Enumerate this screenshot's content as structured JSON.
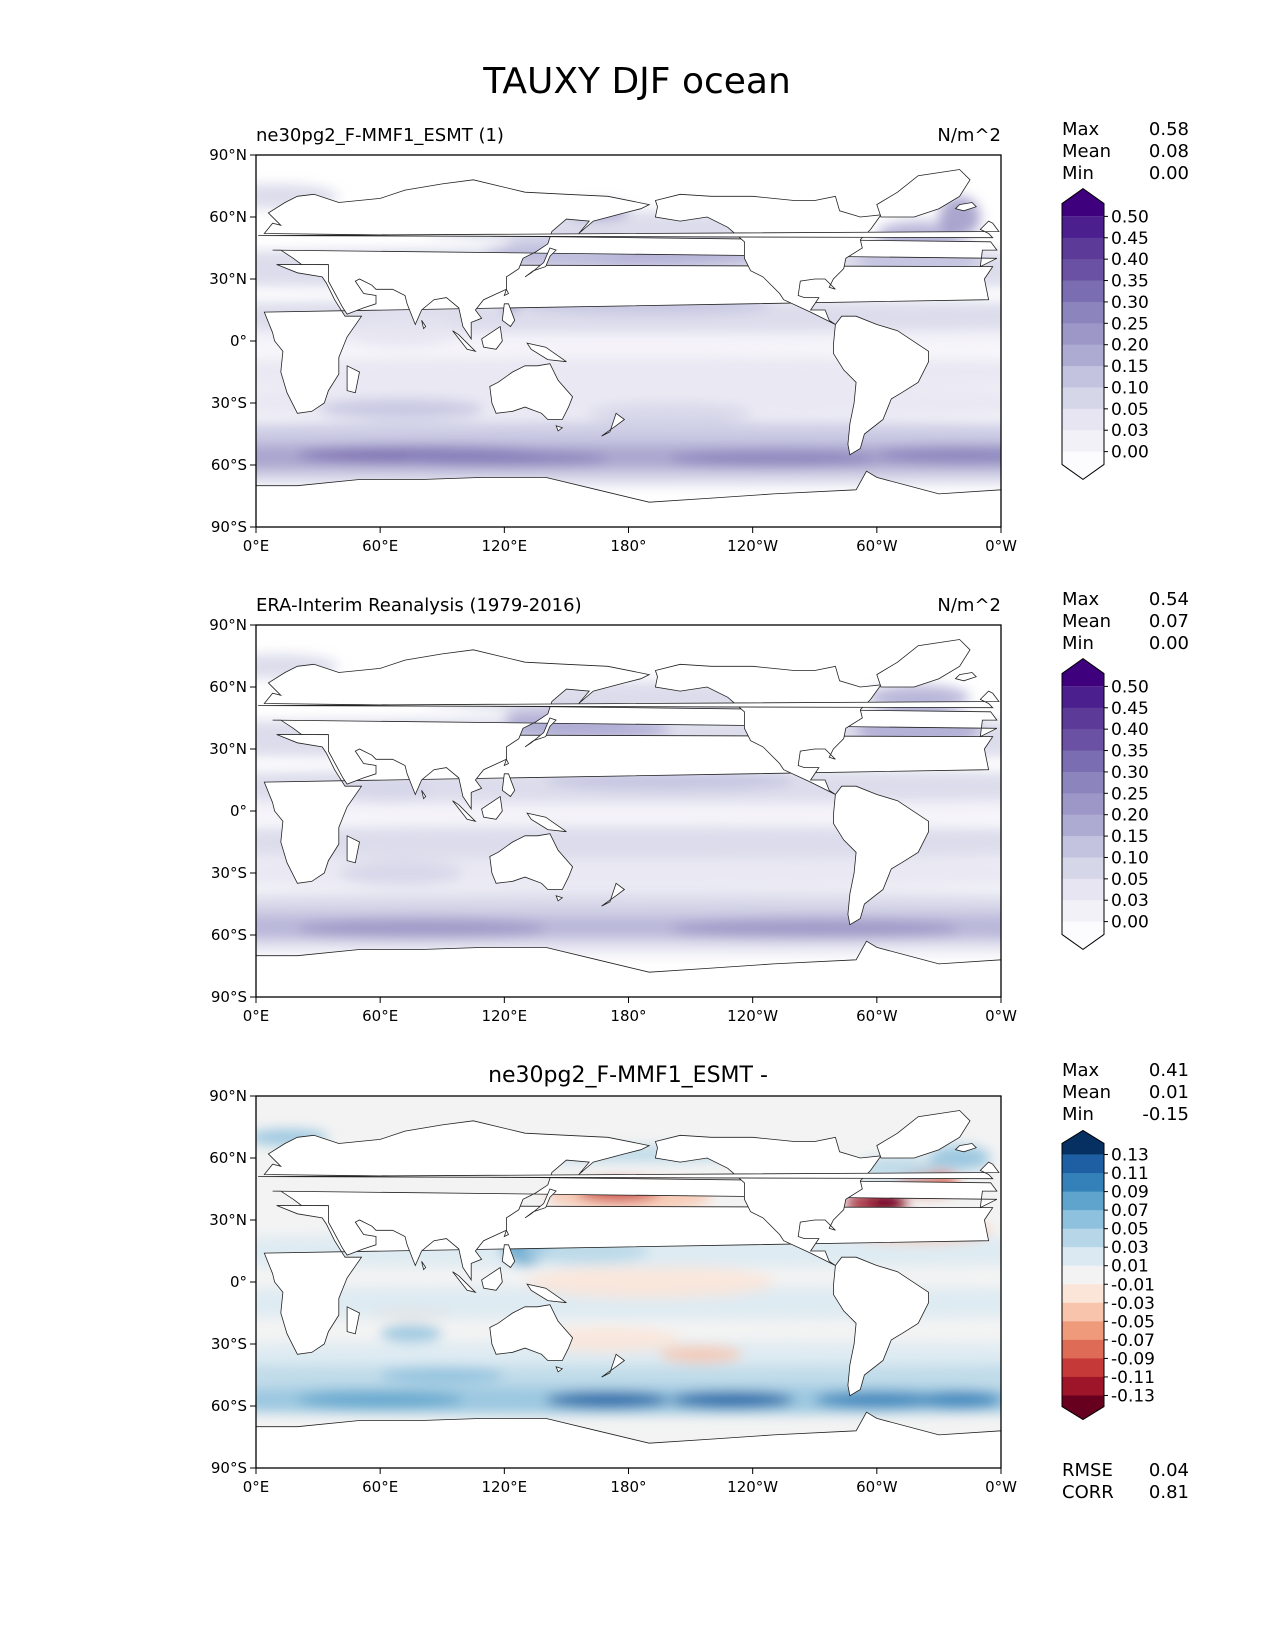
{
  "page_title": "TAUXY DJF ocean",
  "colors": {
    "ocean_seq": [
      "#fcfbfd",
      "#f3f1f8",
      "#e6e5f1",
      "#d6d6e9",
      "#c3c3e0",
      "#aeabd3",
      "#9c97c7",
      "#8b84bd",
      "#7a6db1",
      "#6a51a3",
      "#5b3a98",
      "#4b1f8d",
      "#3f007d"
    ],
    "diff_seq": [
      "#67001f",
      "#9e1428",
      "#c53a38",
      "#dd6b55",
      "#ef9a7a",
      "#f8c4ab",
      "#fbe5d8",
      "#f3f3f3",
      "#dbeaf2",
      "#b7d7e8",
      "#8dc1dd",
      "#5fa4cd",
      "#3480b9",
      "#1d5fa2",
      "#053061"
    ],
    "land": "#ffffff",
    "coast": "#222222"
  },
  "common": {
    "lat_ticks": [
      "90°N",
      "60°N",
      "30°N",
      "0°",
      "30°S",
      "60°S",
      "90°S"
    ],
    "lon_ticks": [
      "0°E",
      "60°E",
      "120°E",
      "180°",
      "120°W",
      "60°W",
      "0°W"
    ],
    "stat_labels": [
      "Max",
      "Mean",
      "Min"
    ]
  },
  "panels": [
    {
      "left_title": "ne30pg2_F-MMF1_ESMT (1)",
      "center_title": "",
      "units": "N/m^2",
      "stats": [
        "0.58",
        "0.08",
        "0.00"
      ],
      "colorbar_labels": [
        "0.50",
        "0.45",
        "0.40",
        "0.35",
        "0.30",
        "0.25",
        "0.20",
        "0.15",
        "0.10",
        "0.05",
        "0.03",
        "0.00"
      ],
      "scheme": "seq"
    },
    {
      "left_title": "ERA-Interim Reanalysis (1979-2016)",
      "center_title": "",
      "units": "N/m^2",
      "stats": [
        "0.54",
        "0.07",
        "0.00"
      ],
      "colorbar_labels": [
        "0.50",
        "0.45",
        "0.40",
        "0.35",
        "0.30",
        "0.25",
        "0.20",
        "0.15",
        "0.10",
        "0.05",
        "0.03",
        "0.00"
      ],
      "scheme": "seq"
    },
    {
      "left_title": "",
      "center_title": "ne30pg2_F-MMF1_ESMT -",
      "units": "",
      "stats": [
        "0.41",
        "0.01",
        "-0.15"
      ],
      "colorbar_labels": [
        "0.13",
        "0.11",
        "0.09",
        "0.07",
        "0.05",
        "0.03",
        "0.01",
        "-0.01",
        "-0.03",
        "-0.05",
        "-0.07",
        "-0.09",
        "-0.11",
        "-0.13"
      ],
      "scheme": "div",
      "bottom_stats": [
        {
          "label": "RMSE",
          "value": "0.04"
        },
        {
          "label": "CORR",
          "value": "0.81"
        }
      ]
    }
  ],
  "chart_data": [
    {
      "type": "heatmap",
      "title": "ne30pg2_F-MMF1_ESMT (1)",
      "units": "N/m^2",
      "xlim": [
        0,
        360
      ],
      "ylim": [
        -90,
        90
      ],
      "stats": {
        "max": 0.58,
        "mean": 0.08,
        "min": 0.0
      },
      "levels": [
        0.0,
        0.03,
        0.05,
        0.1,
        0.15,
        0.2,
        0.25,
        0.3,
        0.35,
        0.4,
        0.45,
        0.5
      ],
      "zonal_profile": [
        {
          "lat": -65,
          "value": 0.14
        },
        {
          "lat": -55,
          "value": 0.24
        },
        {
          "lat": -45,
          "value": 0.19
        },
        {
          "lat": -35,
          "value": 0.1
        },
        {
          "lat": -20,
          "value": 0.08
        },
        {
          "lat": -8,
          "value": 0.06
        },
        {
          "lat": 0,
          "value": 0.04
        },
        {
          "lat": 10,
          "value": 0.08
        },
        {
          "lat": 20,
          "value": 0.1
        },
        {
          "lat": 35,
          "value": 0.15
        },
        {
          "lat": 50,
          "value": 0.14
        },
        {
          "lat": 62,
          "value": 0.17
        }
      ]
    },
    {
      "type": "heatmap",
      "title": "ERA-Interim Reanalysis (1979-2016)",
      "units": "N/m^2",
      "xlim": [
        0,
        360
      ],
      "ylim": [
        -90,
        90
      ],
      "stats": {
        "max": 0.54,
        "mean": 0.07,
        "min": 0.0
      },
      "levels": [
        0.0,
        0.03,
        0.05,
        0.1,
        0.15,
        0.2,
        0.25,
        0.3,
        0.35,
        0.4,
        0.45,
        0.5
      ],
      "zonal_profile": [
        {
          "lat": -65,
          "value": 0.1
        },
        {
          "lat": -55,
          "value": 0.18
        },
        {
          "lat": -45,
          "value": 0.15
        },
        {
          "lat": -35,
          "value": 0.08
        },
        {
          "lat": -20,
          "value": 0.09
        },
        {
          "lat": -8,
          "value": 0.06
        },
        {
          "lat": 0,
          "value": 0.04
        },
        {
          "lat": 10,
          "value": 0.08
        },
        {
          "lat": 20,
          "value": 0.11
        },
        {
          "lat": 35,
          "value": 0.18
        },
        {
          "lat": 50,
          "value": 0.16
        },
        {
          "lat": 62,
          "value": 0.16
        }
      ]
    },
    {
      "type": "heatmap",
      "title": "ne30pg2_F-MMF1_ESMT -",
      "xlim": [
        0,
        360
      ],
      "ylim": [
        -90,
        90
      ],
      "stats": {
        "max": 0.41,
        "mean": 0.01,
        "min": -0.15,
        "rmse": 0.04,
        "corr": 0.81
      },
      "levels": [
        -0.13,
        -0.11,
        -0.09,
        -0.07,
        -0.05,
        -0.03,
        -0.01,
        0.01,
        0.03,
        0.05,
        0.07,
        0.09,
        0.11,
        0.13
      ],
      "zonal_profile": [
        {
          "lat": -65,
          "value": 0.04
        },
        {
          "lat": -55,
          "value": 0.07
        },
        {
          "lat": -45,
          "value": 0.03
        },
        {
          "lat": -35,
          "value": 0.01
        },
        {
          "lat": -20,
          "value": 0.0
        },
        {
          "lat": 0,
          "value": -0.01
        },
        {
          "lat": 10,
          "value": 0.01
        },
        {
          "lat": 20,
          "value": 0.01
        },
        {
          "lat": 38,
          "value": -0.04
        },
        {
          "lat": 50,
          "value": 0.0
        },
        {
          "lat": 62,
          "value": 0.02
        }
      ]
    }
  ]
}
